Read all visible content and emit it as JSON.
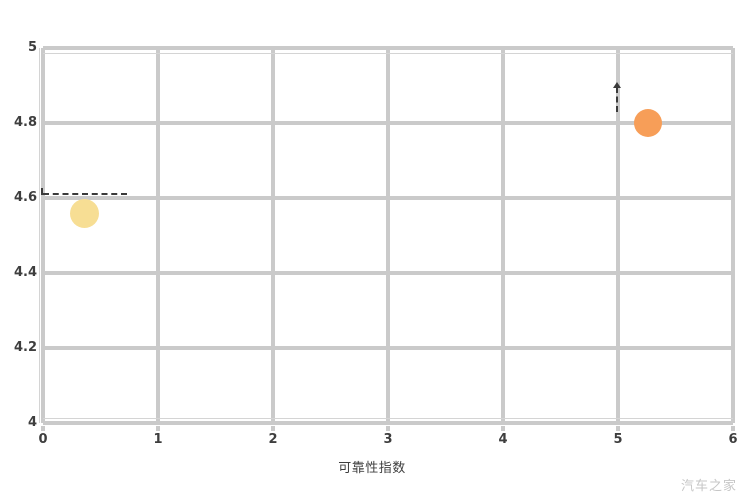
{
  "chart_data": {
    "type": "scatter",
    "title": "",
    "xlabel": "可靠性指数",
    "ylabel": "",
    "xlim": [
      0,
      6
    ],
    "ylim": [
      4,
      5
    ],
    "grid": true,
    "grid_color": "#cacaca",
    "x_ticks": [
      {
        "value": 0,
        "label": "0"
      },
      {
        "value": 1,
        "label": "1"
      },
      {
        "value": 2,
        "label": "2"
      },
      {
        "value": 3,
        "label": "3"
      },
      {
        "value": 4,
        "label": "4"
      },
      {
        "value": 5,
        "label": "5"
      },
      {
        "value": 6,
        "label": "6"
      }
    ],
    "y_ticks": [
      {
        "value": 5,
        "label": "5"
      },
      {
        "value": 4.8,
        "label": "4.8"
      },
      {
        "value": 4.6,
        "label": "4.6"
      },
      {
        "value": 4.4,
        "label": "4.4"
      },
      {
        "value": 4.2,
        "label": "4.2"
      },
      {
        "value": 4,
        "label": "4"
      }
    ],
    "points": [
      {
        "name": "yellow-point",
        "x": 0.36,
        "y": 4.56,
        "color": "#f7de94",
        "diameter": 29
      },
      {
        "name": "orange-point",
        "x": 5.26,
        "y": 4.8,
        "color": "#f79e58",
        "diameter": 28
      }
    ],
    "annotations": [
      {
        "name": "left-dashed-leader",
        "orientation": "horizontal",
        "y": 4.61,
        "x1": 0.0,
        "x2": 0.73,
        "cap_start": true
      },
      {
        "name": "right-dashed-leader",
        "orientation": "vertical",
        "x": 4.99,
        "y1": 4.895,
        "y2": 4.83,
        "arrow_top": true
      }
    ]
  },
  "watermark": {
    "text": "汽车之家",
    "color": "#c6c6c6"
  },
  "colors": {
    "background": "#ffffff",
    "grid": "#cacaca",
    "tick_text": "#3e3e3e",
    "annotation": "#3a3a3a"
  }
}
